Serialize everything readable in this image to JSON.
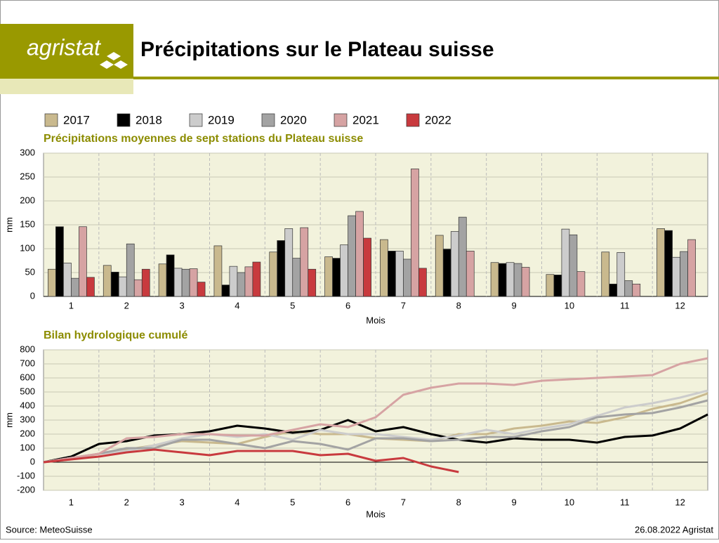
{
  "header": {
    "logo": "agristat",
    "title": "Précipitations sur le Plateau suisse"
  },
  "footer": {
    "source": "Source: MeteoSuisse",
    "date": "26.08.2022 Agristat"
  },
  "chart_data": [
    {
      "type": "bar",
      "title": "Précipitations moyennes de sept stations du Plateau suisse",
      "y_label": "mm",
      "x_label": "Mois",
      "categories": [
        "1",
        "2",
        "3",
        "4",
        "5",
        "6",
        "7",
        "8",
        "9",
        "10",
        "11",
        "12"
      ],
      "ylim": [
        0,
        300
      ],
      "yticks": [
        0,
        50,
        100,
        150,
        200,
        250,
        300
      ],
      "grid": true,
      "legend": "top",
      "series": [
        {
          "name": "2017",
          "color": "#c9b98e",
          "values": [
            57,
            65,
            68,
            106,
            93,
            83,
            119,
            128,
            71,
            46,
            93,
            142
          ]
        },
        {
          "name": "2018",
          "color": "#000000",
          "values": [
            146,
            51,
            87,
            24,
            117,
            80,
            95,
            99,
            69,
            45,
            26,
            138
          ]
        },
        {
          "name": "2019",
          "color": "#cccccc",
          "values": [
            70,
            41,
            59,
            63,
            142,
            108,
            95,
            136,
            71,
            141,
            92,
            82
          ]
        },
        {
          "name": "2020",
          "color": "#a3a3a3",
          "values": [
            38,
            110,
            57,
            50,
            80,
            169,
            78,
            166,
            69,
            129,
            33,
            94
          ]
        },
        {
          "name": "2021",
          "color": "#d6a3a3",
          "values": [
            146,
            35,
            58,
            62,
            144,
            178,
            267,
            95,
            61,
            52,
            26,
            119
          ]
        },
        {
          "name": "2022",
          "color": "#c83a3e",
          "values": [
            40,
            57,
            30,
            72,
            57,
            122,
            59,
            null,
            null,
            null,
            null,
            null
          ]
        }
      ]
    },
    {
      "type": "line",
      "title": "Bilan hydrologique cumulé",
      "y_label": "mm",
      "x_label": "Mois",
      "x": [
        0.5,
        1,
        1.5,
        2,
        2.5,
        3,
        3.5,
        4,
        4.5,
        5,
        5.5,
        6,
        6.5,
        7,
        7.5,
        8,
        8.5,
        9,
        9.5,
        10,
        10.5,
        11,
        11.5,
        12,
        12.5
      ],
      "xlim": [
        0.5,
        12.5
      ],
      "xticks": [
        1,
        2,
        3,
        4,
        5,
        6,
        7,
        8,
        9,
        10,
        11,
        12
      ],
      "ylim": [
        -200,
        800
      ],
      "yticks": [
        -200,
        -100,
        0,
        100,
        200,
        300,
        400,
        500,
        600,
        700,
        800
      ],
      "grid": true,
      "series": [
        {
          "name": "2017",
          "color": "#c9b98e",
          "values": [
            0,
            20,
            60,
            90,
            120,
            150,
            140,
            130,
            180,
            220,
            200,
            200,
            170,
            160,
            150,
            200,
            200,
            240,
            260,
            290,
            280,
            320,
            380,
            420,
            490
          ]
        },
        {
          "name": "2018",
          "color": "#000000",
          "values": [
            0,
            40,
            130,
            150,
            190,
            200,
            220,
            260,
            240,
            210,
            230,
            300,
            220,
            250,
            200,
            160,
            140,
            170,
            160,
            160,
            140,
            180,
            190,
            240,
            340
          ]
        },
        {
          "name": "2019",
          "color": "#cccccc",
          "values": [
            0,
            30,
            60,
            80,
            120,
            170,
            200,
            180,
            200,
            160,
            230,
            200,
            200,
            180,
            160,
            190,
            230,
            200,
            240,
            270,
            330,
            390,
            420,
            460,
            510
          ]
        },
        {
          "name": "2020",
          "color": "#a3a3a3",
          "values": [
            0,
            30,
            60,
            100,
            100,
            160,
            160,
            130,
            100,
            150,
            130,
            90,
            170,
            170,
            150,
            160,
            180,
            180,
            220,
            250,
            320,
            340,
            350,
            390,
            440
          ]
        },
        {
          "name": "2021",
          "color": "#d6a3a3",
          "values": [
            0,
            30,
            60,
            170,
            180,
            200,
            200,
            190,
            190,
            230,
            270,
            250,
            320,
            480,
            530,
            560,
            560,
            550,
            580,
            590,
            600,
            610,
            620,
            700,
            740
          ]
        },
        {
          "name": "2022",
          "color": "#c83a3e",
          "values": [
            0,
            20,
            40,
            70,
            90,
            70,
            50,
            80,
            80,
            80,
            50,
            60,
            10,
            30,
            -30,
            -70,
            null,
            null,
            null,
            null,
            null,
            null,
            null,
            null,
            null
          ]
        }
      ]
    }
  ]
}
